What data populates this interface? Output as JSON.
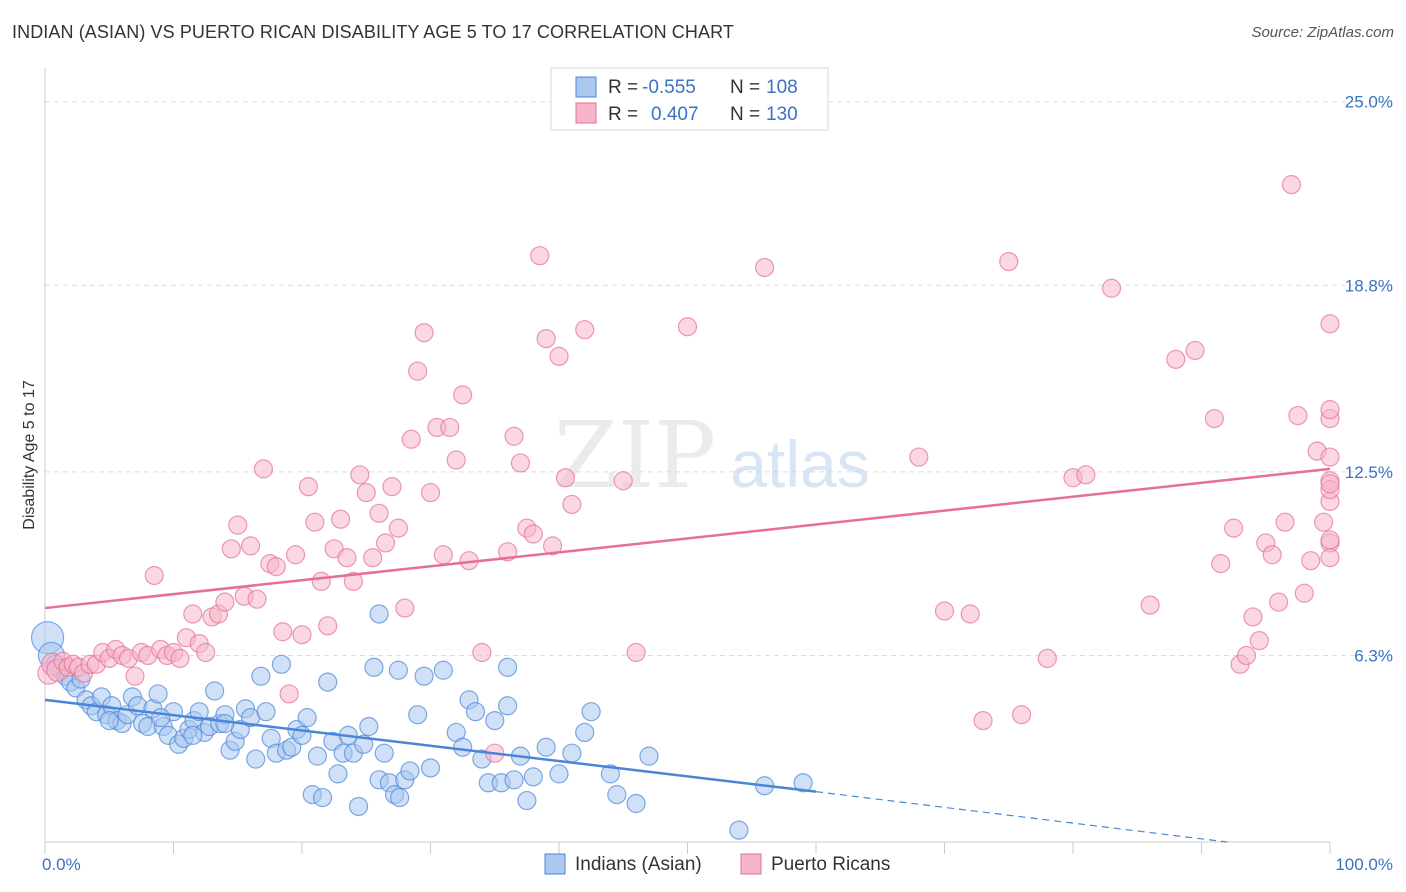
{
  "title": "INDIAN (ASIAN) VS PUERTO RICAN DISABILITY AGE 5 TO 17 CORRELATION CHART",
  "source": "Source: ZipAtlas.com",
  "watermark": {
    "zip": "ZIP",
    "atlas": "atlas"
  },
  "legend": {
    "r_label": "R =",
    "n_label": "N =",
    "rows": [
      {
        "r": "-0.555",
        "n": "108",
        "color": "#aac8f0"
      },
      {
        "r": "0.407",
        "n": "130",
        "color": "#f5b6c9"
      }
    ]
  },
  "chart_data": {
    "type": "scatter",
    "title": "INDIAN (ASIAN) VS PUERTO RICAN DISABILITY AGE 5 TO 17 CORRELATION CHART",
    "xlabel": "",
    "ylabel": "Disability Age 5 to 17",
    "xlim": [
      0,
      100
    ],
    "ylim": [
      0,
      25.8
    ],
    "x_tick_labels": [
      "0.0%",
      "100.0%"
    ],
    "y_ticks": [
      6.3,
      12.5,
      18.8,
      25.0
    ],
    "y_tick_labels": [
      "6.3%",
      "12.5%",
      "18.8%",
      "25.0%"
    ],
    "grid": true,
    "legend_position": "top-center",
    "series": [
      {
        "name": "Indians (Asian)",
        "color": "#4a86d8",
        "fill": "#aac8f0",
        "trend": {
          "x0": 0,
          "y0": 4.8,
          "x1": 60,
          "y1": 1.7,
          "dash_to_x": 92,
          "dash_to_y": 0.0
        },
        "points": [
          [
            0.2,
            6.9
          ],
          [
            0.5,
            6.3
          ],
          [
            0.8,
            6.0
          ],
          [
            1.2,
            5.8
          ],
          [
            1.6,
            5.6
          ],
          [
            2.0,
            5.4
          ],
          [
            2.4,
            5.2
          ],
          [
            2.8,
            5.5
          ],
          [
            3.2,
            4.8
          ],
          [
            3.6,
            4.6
          ],
          [
            4.0,
            4.4
          ],
          [
            4.4,
            4.9
          ],
          [
            4.8,
            4.3
          ],
          [
            5.2,
            4.6
          ],
          [
            5.6,
            4.1
          ],
          [
            6.0,
            4.0
          ],
          [
            6.4,
            4.3
          ],
          [
            6.8,
            4.9
          ],
          [
            7.2,
            4.6
          ],
          [
            7.6,
            4.0
          ],
          [
            8.0,
            3.9
          ],
          [
            8.4,
            4.5
          ],
          [
            8.8,
            5.0
          ],
          [
            9.2,
            3.9
          ],
          [
            9.6,
            3.6
          ],
          [
            10.0,
            4.4
          ],
          [
            10.4,
            3.3
          ],
          [
            10.8,
            3.5
          ],
          [
            11.2,
            3.8
          ],
          [
            11.6,
            4.1
          ],
          [
            12.0,
            4.4
          ],
          [
            12.4,
            3.7
          ],
          [
            12.8,
            3.9
          ],
          [
            13.2,
            5.1
          ],
          [
            13.6,
            4.0
          ],
          [
            14.0,
            4.3
          ],
          [
            14.4,
            3.1
          ],
          [
            14.8,
            3.4
          ],
          [
            15.2,
            3.8
          ],
          [
            15.6,
            4.5
          ],
          [
            16.0,
            4.2
          ],
          [
            16.4,
            2.8
          ],
          [
            16.8,
            5.6
          ],
          [
            17.2,
            4.4
          ],
          [
            17.6,
            3.5
          ],
          [
            18.0,
            3.0
          ],
          [
            18.4,
            6.0
          ],
          [
            18.8,
            3.1
          ],
          [
            19.2,
            3.2
          ],
          [
            19.6,
            3.8
          ],
          [
            20.0,
            3.6
          ],
          [
            20.4,
            4.2
          ],
          [
            20.8,
            1.6
          ],
          [
            21.2,
            2.9
          ],
          [
            21.6,
            1.5
          ],
          [
            22.0,
            5.4
          ],
          [
            22.4,
            3.4
          ],
          [
            22.8,
            2.3
          ],
          [
            23.2,
            3.0
          ],
          [
            23.6,
            3.6
          ],
          [
            24.0,
            3.0
          ],
          [
            24.4,
            1.2
          ],
          [
            24.8,
            3.3
          ],
          [
            25.2,
            3.9
          ],
          [
            25.6,
            5.9
          ],
          [
            26.0,
            2.1
          ],
          [
            26.4,
            3.0
          ],
          [
            26.8,
            2.0
          ],
          [
            27.2,
            1.6
          ],
          [
            27.6,
            1.5
          ],
          [
            28.0,
            2.1
          ],
          [
            28.4,
            2.4
          ],
          [
            29.0,
            4.3
          ],
          [
            29.5,
            5.6
          ],
          [
            30.0,
            2.5
          ],
          [
            31.0,
            5.8
          ],
          [
            32.0,
            3.7
          ],
          [
            32.5,
            3.2
          ],
          [
            33.0,
            4.8
          ],
          [
            33.5,
            4.4
          ],
          [
            34.0,
            2.8
          ],
          [
            34.5,
            2.0
          ],
          [
            35.0,
            4.1
          ],
          [
            35.5,
            2.0
          ],
          [
            36.0,
            4.6
          ],
          [
            36.5,
            2.1
          ],
          [
            37.0,
            2.9
          ],
          [
            37.5,
            1.4
          ],
          [
            38.0,
            2.2
          ],
          [
            39.0,
            3.2
          ],
          [
            40.0,
            2.3
          ],
          [
            41.0,
            3.0
          ],
          [
            42.0,
            3.7
          ],
          [
            42.5,
            4.4
          ],
          [
            44.0,
            2.3
          ],
          [
            44.5,
            1.6
          ],
          [
            46.0,
            1.3
          ],
          [
            47.0,
            2.9
          ],
          [
            54.0,
            0.4
          ],
          [
            56.0,
            1.9
          ],
          [
            59.0,
            2.0
          ],
          [
            26.0,
            7.7
          ],
          [
            27.5,
            5.8
          ],
          [
            36.0,
            5.9
          ],
          [
            14.0,
            4.0
          ],
          [
            9.0,
            4.2
          ],
          [
            11.5,
            3.6
          ],
          [
            5.0,
            4.1
          ]
        ]
      },
      {
        "name": "Puerto Ricans",
        "color": "#e56f97",
        "fill": "#f5b6c9",
        "trend": {
          "x0": 0,
          "y0": 7.9,
          "x1": 100,
          "y1": 12.6
        },
        "points": [
          [
            0.3,
            5.7
          ],
          [
            0.6,
            6.0
          ],
          [
            1.0,
            5.8
          ],
          [
            1.4,
            6.1
          ],
          [
            1.8,
            5.9
          ],
          [
            2.2,
            6.0
          ],
          [
            2.6,
            5.9
          ],
          [
            3.0,
            5.7
          ],
          [
            3.5,
            6.0
          ],
          [
            4.0,
            6.0
          ],
          [
            4.5,
            6.4
          ],
          [
            5.0,
            6.2
          ],
          [
            5.5,
            6.5
          ],
          [
            6.0,
            6.3
          ],
          [
            6.5,
            6.2
          ],
          [
            7.0,
            5.6
          ],
          [
            7.5,
            6.4
          ],
          [
            8.0,
            6.3
          ],
          [
            8.5,
            9.0
          ],
          [
            9.0,
            6.5
          ],
          [
            9.5,
            6.3
          ],
          [
            10.0,
            6.4
          ],
          [
            10.5,
            6.2
          ],
          [
            11.0,
            6.9
          ],
          [
            11.5,
            7.7
          ],
          [
            12.0,
            6.7
          ],
          [
            12.5,
            6.4
          ],
          [
            13.0,
            7.6
          ],
          [
            13.5,
            7.7
          ],
          [
            14.0,
            8.1
          ],
          [
            14.5,
            9.9
          ],
          [
            15.0,
            10.7
          ],
          [
            15.5,
            8.3
          ],
          [
            16.0,
            10.0
          ],
          [
            16.5,
            8.2
          ],
          [
            17.0,
            12.6
          ],
          [
            17.5,
            9.4
          ],
          [
            18.0,
            9.3
          ],
          [
            18.5,
            7.1
          ],
          [
            19.0,
            5.0
          ],
          [
            19.5,
            9.7
          ],
          [
            20.0,
            7.0
          ],
          [
            20.5,
            12.0
          ],
          [
            21.0,
            10.8
          ],
          [
            21.5,
            8.8
          ],
          [
            22.0,
            7.3
          ],
          [
            22.5,
            9.9
          ],
          [
            23.0,
            10.9
          ],
          [
            23.5,
            9.6
          ],
          [
            24.0,
            8.8
          ],
          [
            24.5,
            12.4
          ],
          [
            25.0,
            11.8
          ],
          [
            25.5,
            9.6
          ],
          [
            26.0,
            11.1
          ],
          [
            26.5,
            10.1
          ],
          [
            27.0,
            12.0
          ],
          [
            27.5,
            10.6
          ],
          [
            28.0,
            7.9
          ],
          [
            28.5,
            13.6
          ],
          [
            29.0,
            15.9
          ],
          [
            29.5,
            17.2
          ],
          [
            30.0,
            11.8
          ],
          [
            30.5,
            14.0
          ],
          [
            31.0,
            9.7
          ],
          [
            31.5,
            14.0
          ],
          [
            32.0,
            12.9
          ],
          [
            32.5,
            15.1
          ],
          [
            33.0,
            9.5
          ],
          [
            34.0,
            6.4
          ],
          [
            35.0,
            3.0
          ],
          [
            36.0,
            9.8
          ],
          [
            36.5,
            13.7
          ],
          [
            37.0,
            12.8
          ],
          [
            37.5,
            10.6
          ],
          [
            38.0,
            10.4
          ],
          [
            38.5,
            19.8
          ],
          [
            39.0,
            17.0
          ],
          [
            39.5,
            10.0
          ],
          [
            40.0,
            16.4
          ],
          [
            40.5,
            12.3
          ],
          [
            41.0,
            11.4
          ],
          [
            42.0,
            17.3
          ],
          [
            45.0,
            12.2
          ],
          [
            46.0,
            6.4
          ],
          [
            50.0,
            17.4
          ],
          [
            56.0,
            19.4
          ],
          [
            68.0,
            13.0
          ],
          [
            70.0,
            7.8
          ],
          [
            72.0,
            7.7
          ],
          [
            73.0,
            4.1
          ],
          [
            75.0,
            19.6
          ],
          [
            76.0,
            4.3
          ],
          [
            78.0,
            6.2
          ],
          [
            80.0,
            12.3
          ],
          [
            81.0,
            12.4
          ],
          [
            83.0,
            18.7
          ],
          [
            86.0,
            8.0
          ],
          [
            88.0,
            16.3
          ],
          [
            89.5,
            16.6
          ],
          [
            91.0,
            14.3
          ],
          [
            91.5,
            9.4
          ],
          [
            92.5,
            10.6
          ],
          [
            93.0,
            6.0
          ],
          [
            93.5,
            6.3
          ],
          [
            94.0,
            7.6
          ],
          [
            94.5,
            6.8
          ],
          [
            95.0,
            10.1
          ],
          [
            95.5,
            9.7
          ],
          [
            96.0,
            8.1
          ],
          [
            96.5,
            10.8
          ],
          [
            97.0,
            22.2
          ],
          [
            97.5,
            14.4
          ],
          [
            98.0,
            8.4
          ],
          [
            98.5,
            9.5
          ],
          [
            99.0,
            13.2
          ],
          [
            99.5,
            10.8
          ],
          [
            100.0,
            14.3
          ],
          [
            100.5,
            13.0
          ],
          [
            101.0,
            14.6
          ],
          [
            101.5,
            11.5
          ],
          [
            102.0,
            12.2
          ],
          [
            102.5,
            10.1
          ],
          [
            103.0,
            10.2
          ],
          [
            103.5,
            9.6
          ],
          [
            104.0,
            11.9
          ],
          [
            104.5,
            12.1
          ],
          [
            105.0,
            17.5
          ]
        ]
      }
    ]
  },
  "bottom_legend": [
    "Indians (Asian)",
    "Puerto Ricans"
  ]
}
